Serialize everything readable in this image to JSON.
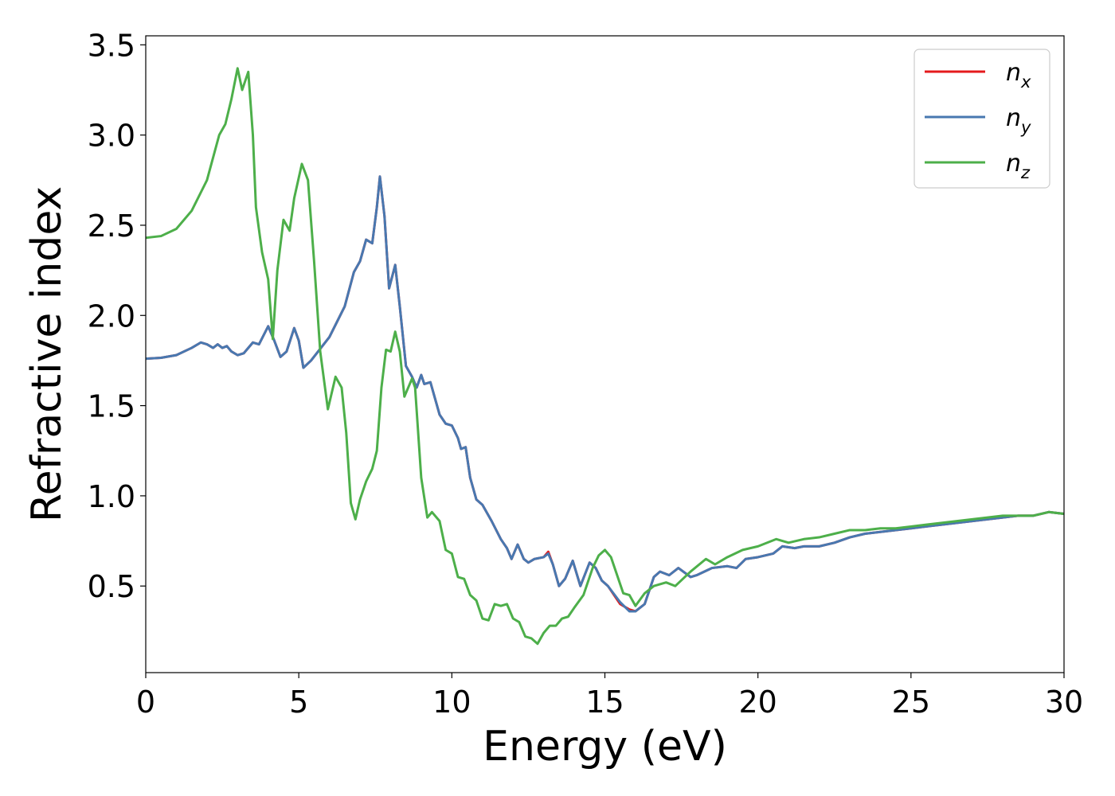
{
  "chart_data": {
    "type": "line",
    "xlabel": "Energy (eV)",
    "ylabel": "Refractive index",
    "xlim": [
      0,
      30
    ],
    "ylim": [
      0.02,
      3.55
    ],
    "xticks": [
      0,
      5,
      10,
      15,
      20,
      25,
      30
    ],
    "xtick_labels": [
      "0",
      "5",
      "10",
      "15",
      "20",
      "25",
      "30"
    ],
    "yticks": [
      0.5,
      1.0,
      1.5,
      2.0,
      2.5,
      3.0,
      3.5
    ],
    "ytick_labels": [
      "0.5",
      "1.0",
      "1.5",
      "2.0",
      "2.5",
      "3.0",
      "3.5"
    ],
    "grid": false,
    "legend_position": "top-right",
    "series": [
      {
        "name": "n",
        "subscript": "x",
        "color": "#e41a1c",
        "points": [
          [
            0,
            1.76
          ],
          [
            0.5,
            1.765
          ],
          [
            1.0,
            1.78
          ],
          [
            1.5,
            1.82
          ],
          [
            1.8,
            1.85
          ],
          [
            2.0,
            1.84
          ],
          [
            2.2,
            1.82
          ],
          [
            2.35,
            1.84
          ],
          [
            2.5,
            1.82
          ],
          [
            2.65,
            1.83
          ],
          [
            2.8,
            1.8
          ],
          [
            3.0,
            1.78
          ],
          [
            3.2,
            1.79
          ],
          [
            3.5,
            1.85
          ],
          [
            3.7,
            1.84
          ],
          [
            4.0,
            1.94
          ],
          [
            4.2,
            1.86
          ],
          [
            4.4,
            1.77
          ],
          [
            4.6,
            1.8
          ],
          [
            4.85,
            1.93
          ],
          [
            5.0,
            1.86
          ],
          [
            5.15,
            1.71
          ],
          [
            5.4,
            1.75
          ],
          [
            6.0,
            1.88
          ],
          [
            6.5,
            2.05
          ],
          [
            6.8,
            2.24
          ],
          [
            7.0,
            2.3
          ],
          [
            7.2,
            2.42
          ],
          [
            7.4,
            2.4
          ],
          [
            7.55,
            2.6
          ],
          [
            7.65,
            2.77
          ],
          [
            7.8,
            2.55
          ],
          [
            7.95,
            2.15
          ],
          [
            8.15,
            2.28
          ],
          [
            8.3,
            2.05
          ],
          [
            8.5,
            1.72
          ],
          [
            8.7,
            1.66
          ],
          [
            8.85,
            1.6
          ],
          [
            9.0,
            1.67
          ],
          [
            9.1,
            1.62
          ],
          [
            9.3,
            1.63
          ],
          [
            9.6,
            1.45
          ],
          [
            9.8,
            1.4
          ],
          [
            10.0,
            1.39
          ],
          [
            10.2,
            1.32
          ],
          [
            10.3,
            1.26
          ],
          [
            10.45,
            1.27
          ],
          [
            10.6,
            1.1
          ],
          [
            10.8,
            0.98
          ],
          [
            11.0,
            0.95
          ],
          [
            11.3,
            0.86
          ],
          [
            11.6,
            0.76
          ],
          [
            11.8,
            0.71
          ],
          [
            11.95,
            0.65
          ],
          [
            12.15,
            0.73
          ],
          [
            12.35,
            0.65
          ],
          [
            12.5,
            0.63
          ],
          [
            12.7,
            0.65
          ],
          [
            13.0,
            0.66
          ],
          [
            13.15,
            0.69
          ],
          [
            13.3,
            0.62
          ],
          [
            13.5,
            0.5
          ],
          [
            13.7,
            0.54
          ],
          [
            13.95,
            0.64
          ],
          [
            14.2,
            0.5
          ],
          [
            14.5,
            0.63
          ],
          [
            14.7,
            0.6
          ],
          [
            14.9,
            0.53
          ],
          [
            15.1,
            0.5
          ],
          [
            15.5,
            0.4
          ],
          [
            15.8,
            0.37
          ],
          [
            16.0,
            0.36
          ],
          [
            16.3,
            0.4
          ],
          [
            16.6,
            0.55
          ],
          [
            16.8,
            0.58
          ],
          [
            17.1,
            0.56
          ],
          [
            17.4,
            0.6
          ],
          [
            17.8,
            0.55
          ],
          [
            18.0,
            0.56
          ],
          [
            18.5,
            0.6
          ],
          [
            19.0,
            0.61
          ],
          [
            19.3,
            0.6
          ],
          [
            19.6,
            0.65
          ],
          [
            20.0,
            0.66
          ],
          [
            20.5,
            0.68
          ],
          [
            20.8,
            0.72
          ],
          [
            21.2,
            0.71
          ],
          [
            21.5,
            0.72
          ],
          [
            22.0,
            0.72
          ],
          [
            22.5,
            0.74
          ],
          [
            23.0,
            0.77
          ],
          [
            23.5,
            0.79
          ],
          [
            24.0,
            0.8
          ],
          [
            24.5,
            0.81
          ],
          [
            25.0,
            0.82
          ],
          [
            25.5,
            0.83
          ],
          [
            26.0,
            0.84
          ],
          [
            26.5,
            0.85
          ],
          [
            27.0,
            0.86
          ],
          [
            27.5,
            0.87
          ],
          [
            28.0,
            0.88
          ],
          [
            28.5,
            0.89
          ],
          [
            29.0,
            0.89
          ],
          [
            29.5,
            0.91
          ],
          [
            30.0,
            0.9
          ]
        ]
      },
      {
        "name": "n",
        "subscript": "y",
        "color": "#4878b0",
        "points": [
          [
            0,
            1.76
          ],
          [
            0.5,
            1.765
          ],
          [
            1.0,
            1.78
          ],
          [
            1.5,
            1.82
          ],
          [
            1.8,
            1.85
          ],
          [
            2.0,
            1.84
          ],
          [
            2.2,
            1.82
          ],
          [
            2.35,
            1.84
          ],
          [
            2.5,
            1.82
          ],
          [
            2.65,
            1.83
          ],
          [
            2.8,
            1.8
          ],
          [
            3.0,
            1.78
          ],
          [
            3.2,
            1.79
          ],
          [
            3.5,
            1.85
          ],
          [
            3.7,
            1.84
          ],
          [
            4.0,
            1.94
          ],
          [
            4.2,
            1.86
          ],
          [
            4.4,
            1.77
          ],
          [
            4.6,
            1.8
          ],
          [
            4.85,
            1.93
          ],
          [
            5.0,
            1.86
          ],
          [
            5.15,
            1.71
          ],
          [
            5.4,
            1.75
          ],
          [
            6.0,
            1.88
          ],
          [
            6.5,
            2.05
          ],
          [
            6.8,
            2.24
          ],
          [
            7.0,
            2.3
          ],
          [
            7.2,
            2.42
          ],
          [
            7.4,
            2.4
          ],
          [
            7.55,
            2.6
          ],
          [
            7.65,
            2.77
          ],
          [
            7.8,
            2.55
          ],
          [
            7.95,
            2.15
          ],
          [
            8.15,
            2.28
          ],
          [
            8.3,
            2.05
          ],
          [
            8.5,
            1.72
          ],
          [
            8.7,
            1.66
          ],
          [
            8.85,
            1.6
          ],
          [
            9.0,
            1.67
          ],
          [
            9.1,
            1.62
          ],
          [
            9.3,
            1.63
          ],
          [
            9.6,
            1.45
          ],
          [
            9.8,
            1.4
          ],
          [
            10.0,
            1.39
          ],
          [
            10.2,
            1.32
          ],
          [
            10.3,
            1.26
          ],
          [
            10.45,
            1.27
          ],
          [
            10.6,
            1.1
          ],
          [
            10.8,
            0.98
          ],
          [
            11.0,
            0.95
          ],
          [
            11.3,
            0.86
          ],
          [
            11.6,
            0.76
          ],
          [
            11.8,
            0.71
          ],
          [
            11.95,
            0.65
          ],
          [
            12.15,
            0.73
          ],
          [
            12.35,
            0.65
          ],
          [
            12.5,
            0.63
          ],
          [
            12.7,
            0.65
          ],
          [
            13.0,
            0.66
          ],
          [
            13.15,
            0.68
          ],
          [
            13.3,
            0.62
          ],
          [
            13.5,
            0.5
          ],
          [
            13.7,
            0.54
          ],
          [
            13.95,
            0.64
          ],
          [
            14.2,
            0.5
          ],
          [
            14.5,
            0.63
          ],
          [
            14.7,
            0.6
          ],
          [
            14.9,
            0.53
          ],
          [
            15.1,
            0.5
          ],
          [
            15.5,
            0.41
          ],
          [
            15.8,
            0.36
          ],
          [
            16.0,
            0.36
          ],
          [
            16.3,
            0.4
          ],
          [
            16.6,
            0.55
          ],
          [
            16.8,
            0.58
          ],
          [
            17.1,
            0.56
          ],
          [
            17.4,
            0.6
          ],
          [
            17.8,
            0.55
          ],
          [
            18.0,
            0.56
          ],
          [
            18.5,
            0.6
          ],
          [
            19.0,
            0.61
          ],
          [
            19.3,
            0.6
          ],
          [
            19.6,
            0.65
          ],
          [
            20.0,
            0.66
          ],
          [
            20.5,
            0.68
          ],
          [
            20.8,
            0.72
          ],
          [
            21.2,
            0.71
          ],
          [
            21.5,
            0.72
          ],
          [
            22.0,
            0.72
          ],
          [
            22.5,
            0.74
          ],
          [
            23.0,
            0.77
          ],
          [
            23.5,
            0.79
          ],
          [
            24.0,
            0.8
          ],
          [
            24.5,
            0.81
          ],
          [
            25.0,
            0.82
          ],
          [
            25.5,
            0.83
          ],
          [
            26.0,
            0.84
          ],
          [
            26.5,
            0.85
          ],
          [
            27.0,
            0.86
          ],
          [
            27.5,
            0.87
          ],
          [
            28.0,
            0.88
          ],
          [
            28.5,
            0.89
          ],
          [
            29.0,
            0.89
          ],
          [
            29.5,
            0.91
          ],
          [
            30.0,
            0.9
          ]
        ]
      },
      {
        "name": "n",
        "subscript": "z",
        "color": "#4daf4a",
        "points": [
          [
            0,
            2.43
          ],
          [
            0.5,
            2.44
          ],
          [
            1.0,
            2.48
          ],
          [
            1.5,
            2.58
          ],
          [
            2.0,
            2.75
          ],
          [
            2.4,
            3.0
          ],
          [
            2.6,
            3.06
          ],
          [
            2.8,
            3.2
          ],
          [
            3.0,
            3.37
          ],
          [
            3.15,
            3.25
          ],
          [
            3.35,
            3.35
          ],
          [
            3.5,
            3.0
          ],
          [
            3.6,
            2.6
          ],
          [
            3.8,
            2.35
          ],
          [
            4.0,
            2.2
          ],
          [
            4.15,
            1.87
          ],
          [
            4.3,
            2.25
          ],
          [
            4.5,
            2.53
          ],
          [
            4.7,
            2.47
          ],
          [
            4.85,
            2.65
          ],
          [
            5.1,
            2.84
          ],
          [
            5.3,
            2.75
          ],
          [
            5.5,
            2.3
          ],
          [
            5.7,
            1.8
          ],
          [
            5.95,
            1.48
          ],
          [
            6.2,
            1.66
          ],
          [
            6.4,
            1.6
          ],
          [
            6.55,
            1.35
          ],
          [
            6.7,
            0.96
          ],
          [
            6.85,
            0.87
          ],
          [
            7.0,
            0.98
          ],
          [
            7.2,
            1.08
          ],
          [
            7.4,
            1.15
          ],
          [
            7.55,
            1.25
          ],
          [
            7.7,
            1.6
          ],
          [
            7.85,
            1.81
          ],
          [
            8.0,
            1.8
          ],
          [
            8.15,
            1.91
          ],
          [
            8.3,
            1.8
          ],
          [
            8.45,
            1.55
          ],
          [
            8.7,
            1.65
          ],
          [
            8.8,
            1.6
          ],
          [
            9.0,
            1.1
          ],
          [
            9.2,
            0.88
          ],
          [
            9.35,
            0.91
          ],
          [
            9.6,
            0.86
          ],
          [
            9.8,
            0.7
          ],
          [
            10.0,
            0.68
          ],
          [
            10.2,
            0.55
          ],
          [
            10.4,
            0.54
          ],
          [
            10.6,
            0.45
          ],
          [
            10.8,
            0.42
          ],
          [
            11.0,
            0.32
          ],
          [
            11.2,
            0.31
          ],
          [
            11.4,
            0.4
          ],
          [
            11.6,
            0.39
          ],
          [
            11.8,
            0.4
          ],
          [
            12.0,
            0.32
          ],
          [
            12.2,
            0.3
          ],
          [
            12.4,
            0.22
          ],
          [
            12.6,
            0.21
          ],
          [
            12.8,
            0.18
          ],
          [
            13.0,
            0.24
          ],
          [
            13.2,
            0.28
          ],
          [
            13.4,
            0.28
          ],
          [
            13.6,
            0.32
          ],
          [
            13.8,
            0.33
          ],
          [
            14.0,
            0.38
          ],
          [
            14.3,
            0.45
          ],
          [
            14.6,
            0.6
          ],
          [
            14.8,
            0.67
          ],
          [
            15.0,
            0.7
          ],
          [
            15.2,
            0.66
          ],
          [
            15.4,
            0.56
          ],
          [
            15.6,
            0.46
          ],
          [
            15.8,
            0.45
          ],
          [
            16.0,
            0.39
          ],
          [
            16.3,
            0.46
          ],
          [
            16.6,
            0.5
          ],
          [
            17.0,
            0.52
          ],
          [
            17.3,
            0.5
          ],
          [
            17.8,
            0.58
          ],
          [
            18.3,
            0.65
          ],
          [
            18.6,
            0.62
          ],
          [
            19.0,
            0.66
          ],
          [
            19.5,
            0.7
          ],
          [
            20.0,
            0.72
          ],
          [
            20.6,
            0.76
          ],
          [
            21.0,
            0.74
          ],
          [
            21.5,
            0.76
          ],
          [
            22.0,
            0.77
          ],
          [
            22.5,
            0.79
          ],
          [
            23.0,
            0.81
          ],
          [
            23.5,
            0.81
          ],
          [
            24.0,
            0.82
          ],
          [
            24.5,
            0.82
          ],
          [
            25.0,
            0.83
          ],
          [
            25.5,
            0.84
          ],
          [
            26.0,
            0.85
          ],
          [
            26.5,
            0.86
          ],
          [
            27.0,
            0.87
          ],
          [
            27.5,
            0.88
          ],
          [
            28.0,
            0.89
          ],
          [
            28.5,
            0.89
          ],
          [
            29.0,
            0.89
          ],
          [
            29.5,
            0.91
          ],
          [
            30.0,
            0.9
          ]
        ]
      }
    ]
  }
}
